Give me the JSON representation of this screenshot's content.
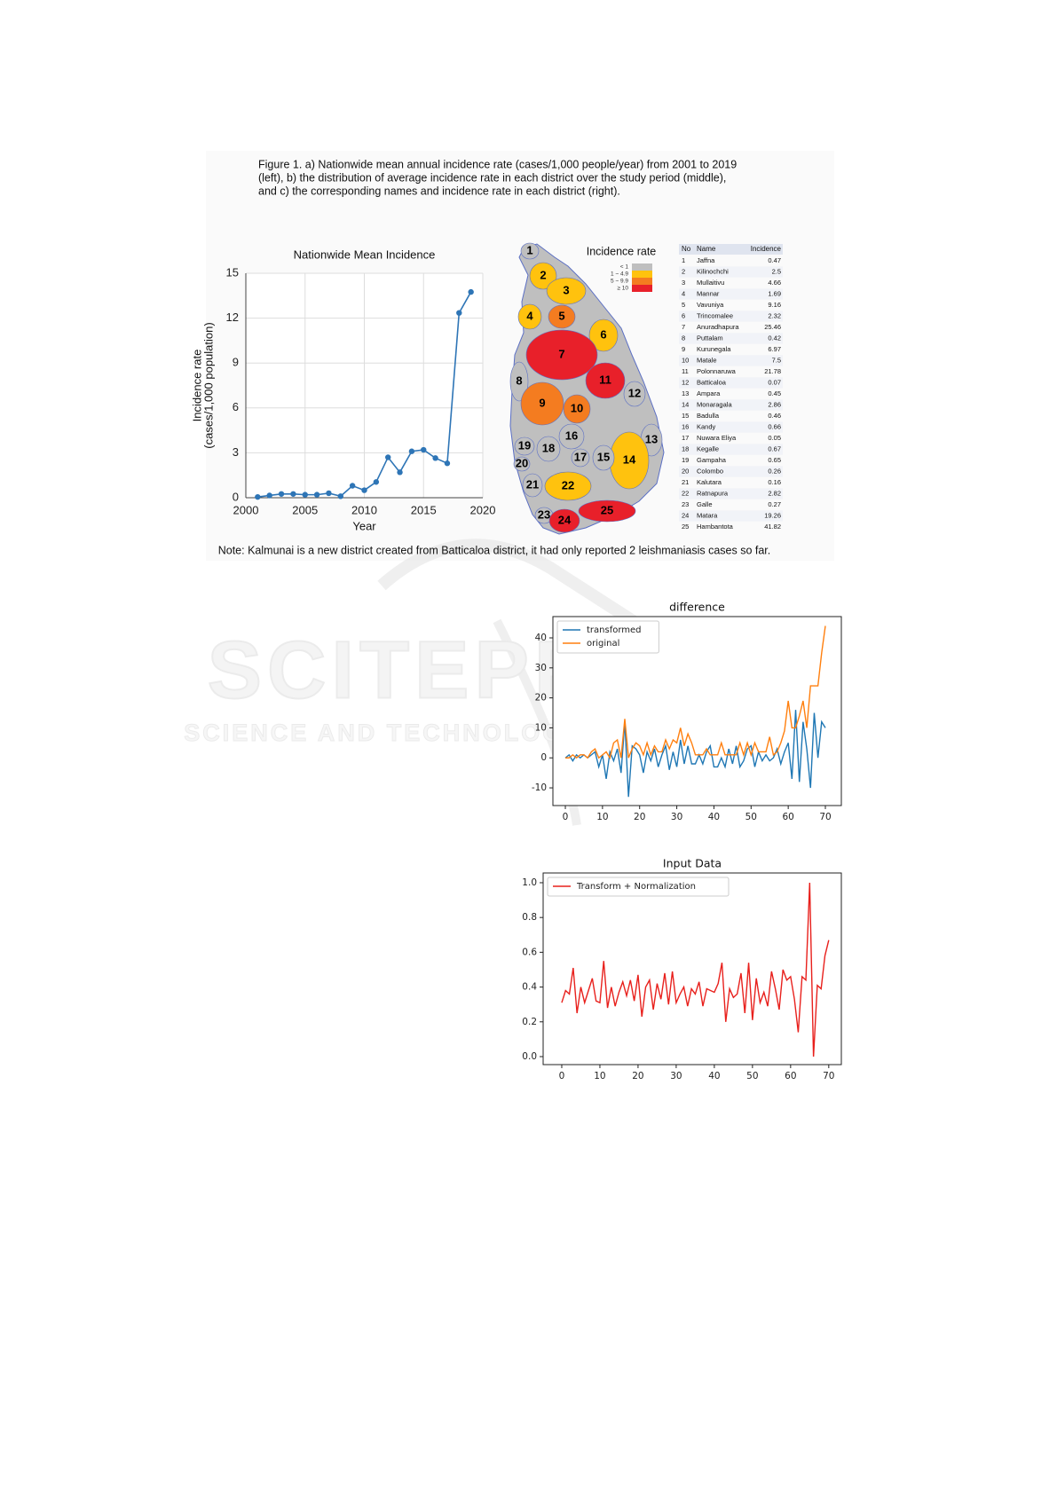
{
  "figure_caption": [
    "Figure 1. a) Nationwide mean annual incidence rate (cases/1,000 people/year) from 2001 to 2019",
    "(left), b) the distribution of average incidence rate in each district over the study period (middle),",
    "and c) the corresponding names and incidence rate in each district (right)."
  ],
  "note": "Note: Kalmunai is a new district created from Batticaloa district, it had only reported 2 leishmaniasis cases so far.",
  "watermark": {
    "title": "SCITEPRESS",
    "subtitle": "SCIENCE AND TECHNOLOGY PUBLICATIONS"
  },
  "map": {
    "title": "Incidence rate",
    "legend": [
      {
        "label": "< 1",
        "color": "#bfbfbf"
      },
      {
        "label": "1 ~ 4.9",
        "color": "#ffc20e"
      },
      {
        "label": "5 ~ 9.9",
        "color": "#f47c20"
      },
      {
        "label": "≥ 10",
        "color": "#e8202a"
      }
    ],
    "districts": [
      {
        "no": 1,
        "color": "#bfbfbf"
      },
      {
        "no": 2,
        "color": "#ffc20e"
      },
      {
        "no": 3,
        "color": "#ffc20e"
      },
      {
        "no": 4,
        "color": "#ffc20e"
      },
      {
        "no": 5,
        "color": "#f47c20"
      },
      {
        "no": 6,
        "color": "#ffc20e"
      },
      {
        "no": 7,
        "color": "#e8202a"
      },
      {
        "no": 8,
        "color": "#bfbfbf"
      },
      {
        "no": 9,
        "color": "#f47c20"
      },
      {
        "no": 10,
        "color": "#f47c20"
      },
      {
        "no": 11,
        "color": "#e8202a"
      },
      {
        "no": 12,
        "color": "#bfbfbf"
      },
      {
        "no": 13,
        "color": "#bfbfbf"
      },
      {
        "no": 14,
        "color": "#ffc20e"
      },
      {
        "no": 15,
        "color": "#bfbfbf"
      },
      {
        "no": 16,
        "color": "#bfbfbf"
      },
      {
        "no": 17,
        "color": "#bfbfbf"
      },
      {
        "no": 18,
        "color": "#bfbfbf"
      },
      {
        "no": 19,
        "color": "#bfbfbf"
      },
      {
        "no": 20,
        "color": "#bfbfbf"
      },
      {
        "no": 21,
        "color": "#bfbfbf"
      },
      {
        "no": 22,
        "color": "#ffc20e"
      },
      {
        "no": 23,
        "color": "#bfbfbf"
      },
      {
        "no": 24,
        "color": "#e8202a"
      },
      {
        "no": 25,
        "color": "#e8202a"
      }
    ]
  },
  "table": {
    "header": [
      "No",
      "Name",
      "Incidence"
    ],
    "rows": [
      [
        1,
        "Jaffna",
        0.47
      ],
      [
        2,
        "Kilinochchi",
        2.5
      ],
      [
        3,
        "Mullaitivu",
        4.66
      ],
      [
        4,
        "Mannar",
        1.69
      ],
      [
        5,
        "Vavuniya",
        9.16
      ],
      [
        6,
        "Trincomalee",
        2.32
      ],
      [
        7,
        "Anuradhapura",
        25.46
      ],
      [
        8,
        "Puttalam",
        0.42
      ],
      [
        9,
        "Kurunegala",
        6.97
      ],
      [
        10,
        "Matale",
        7.5
      ],
      [
        11,
        "Polonnaruwa",
        21.78
      ],
      [
        12,
        "Batticaloa",
        0.07
      ],
      [
        13,
        "Ampara",
        0.45
      ],
      [
        14,
        "Monaragala",
        2.86
      ],
      [
        15,
        "Badulla",
        0.46
      ],
      [
        16,
        "Kandy",
        0.66
      ],
      [
        17,
        "Nuwara Eliya",
        0.05
      ],
      [
        18,
        "Kegalle",
        0.67
      ],
      [
        19,
        "Gampaha",
        0.65
      ],
      [
        20,
        "Colombo",
        0.26
      ],
      [
        21,
        "Kalutara",
        0.16
      ],
      [
        22,
        "Ratnapura",
        2.82
      ],
      [
        23,
        "Galle",
        0.27
      ],
      [
        24,
        "Matara",
        19.26
      ],
      [
        25,
        "Hambantota",
        41.82
      ]
    ]
  },
  "chart_data": [
    {
      "type": "line",
      "title": "Nationwide Mean Incidence",
      "x_label": "Year",
      "y_label": [
        "Incidence rate",
        "(cases/1,000 population)"
      ],
      "x": [
        2001,
        2002,
        2003,
        2004,
        2005,
        2006,
        2007,
        2008,
        2009,
        2010,
        2011,
        2012,
        2013,
        2014,
        2015,
        2016,
        2017,
        2018,
        2019
      ],
      "values": [
        0.05,
        0.15,
        0.25,
        0.25,
        0.2,
        0.2,
        0.3,
        0.1,
        0.8,
        0.5,
        1.05,
        2.7,
        1.7,
        3.1,
        3.2,
        2.65,
        2.3,
        12.35,
        13.75
      ],
      "color": "#2e75b6",
      "markers": true,
      "grid": true,
      "xlim": [
        2000,
        2020
      ],
      "xticks": [
        2000,
        2005,
        2010,
        2015,
        2020
      ],
      "ylim": [
        0,
        15
      ],
      "yticks": [
        0,
        3,
        6,
        9,
        12,
        15
      ]
    },
    {
      "type": "line",
      "title": "difference",
      "legend": "upper left",
      "grid": false,
      "x": [
        0,
        1,
        2,
        3,
        4,
        5,
        6,
        7,
        8,
        9,
        10,
        11,
        12,
        13,
        14,
        15,
        16,
        17,
        18,
        19,
        20,
        21,
        22,
        23,
        24,
        25,
        26,
        27,
        28,
        29,
        30,
        31,
        32,
        33,
        34,
        35,
        36,
        37,
        38,
        39,
        40,
        41,
        42,
        43,
        44,
        45,
        46,
        47,
        48,
        49,
        50,
        51,
        52,
        53,
        54,
        55,
        56,
        57,
        58,
        59,
        60,
        61,
        62,
        63,
        64,
        65,
        66,
        67,
        68,
        69,
        70
      ],
      "series": [
        {
          "name": "transformed",
          "color": "#1f77b4",
          "values": [
            0,
            1,
            -1,
            1,
            0,
            1,
            0,
            1,
            2,
            -3,
            1,
            -7,
            2,
            -1,
            3,
            -5,
            12,
            -13,
            4,
            3,
            1,
            -5,
            2,
            -1,
            3,
            -3,
            1,
            4,
            -4,
            2,
            -3,
            6,
            -2,
            4,
            -2,
            -2,
            1,
            -2,
            2,
            4,
            -3,
            -3,
            0,
            -3,
            3,
            -2,
            4,
            -3,
            -1,
            3,
            4,
            -3,
            2,
            -1,
            1,
            -1,
            0,
            3,
            -2,
            2,
            5,
            -7,
            16,
            -8,
            12,
            3,
            -10,
            15,
            0,
            12,
            10
          ]
        },
        {
          "name": "original",
          "color": "#ff7f0e",
          "values": [
            0,
            0,
            1,
            0,
            1,
            1,
            0,
            2,
            3,
            0,
            1,
            2,
            0,
            5,
            6,
            0,
            13,
            0,
            3,
            5,
            4,
            1,
            5,
            1,
            4,
            2,
            2,
            6,
            3,
            6,
            5,
            10,
            4,
            8,
            5,
            1,
            1,
            1,
            3,
            1,
            1,
            1,
            5,
            1,
            1,
            1,
            1,
            5,
            1,
            5,
            1,
            5,
            2,
            2,
            2,
            7,
            1,
            2,
            5,
            9,
            19,
            10,
            10,
            14,
            19,
            10,
            24,
            24,
            24,
            35,
            44
          ]
        }
      ],
      "xlim": [
        -3.35,
        74.3
      ],
      "xticks": [
        0,
        10,
        20,
        30,
        40,
        50,
        60,
        70
      ],
      "ylim": [
        -15.9,
        47.1
      ],
      "yticks": [
        -10,
        0,
        10,
        20,
        30,
        40
      ]
    },
    {
      "type": "line",
      "title": "Input Data",
      "legend": "upper left",
      "grid": false,
      "x": [
        0,
        1,
        2,
        3,
        4,
        5,
        6,
        7,
        8,
        9,
        10,
        11,
        12,
        13,
        14,
        15,
        16,
        17,
        18,
        19,
        20,
        21,
        22,
        23,
        24,
        25,
        26,
        27,
        28,
        29,
        30,
        31,
        32,
        33,
        34,
        35,
        36,
        37,
        38,
        39,
        40,
        41,
        42,
        43,
        44,
        45,
        46,
        47,
        48,
        49,
        50,
        51,
        52,
        53,
        54,
        55,
        56,
        57,
        58,
        59,
        60,
        61,
        62,
        63,
        64,
        65,
        66,
        67,
        68,
        69,
        70
      ],
      "series": [
        {
          "name": "Transform + Normalization",
          "color": "#e8201c",
          "values": [
            0.31,
            0.38,
            0.36,
            0.51,
            0.25,
            0.4,
            0.31,
            0.38,
            0.45,
            0.32,
            0.31,
            0.55,
            0.28,
            0.4,
            0.29,
            0.37,
            0.43,
            0.35,
            0.44,
            0.32,
            0.47,
            0.23,
            0.4,
            0.44,
            0.27,
            0.42,
            0.33,
            0.48,
            0.3,
            0.49,
            0.31,
            0.36,
            0.4,
            0.29,
            0.39,
            0.36,
            0.43,
            0.29,
            0.39,
            0.38,
            0.37,
            0.42,
            0.54,
            0.2,
            0.39,
            0.34,
            0.36,
            0.48,
            0.25,
            0.54,
            0.21,
            0.45,
            0.31,
            0.37,
            0.29,
            0.49,
            0.39,
            0.27,
            0.5,
            0.44,
            0.46,
            0.33,
            0.14,
            0.46,
            0.44,
            1.0,
            0.0,
            0.41,
            0.39,
            0.58,
            0.67
          ]
        }
      ],
      "xlim": [
        -4.88,
        73.3
      ],
      "xticks": [
        0,
        10,
        20,
        30,
        40,
        50,
        60,
        70
      ],
      "ylim": [
        -0.046,
        1.056
      ],
      "yticks": [
        {
          "value": 0,
          "label": "0.0"
        },
        0.2,
        0.4,
        0.6,
        0.8,
        {
          "value": 1,
          "label": "1.0"
        }
      ]
    }
  ]
}
